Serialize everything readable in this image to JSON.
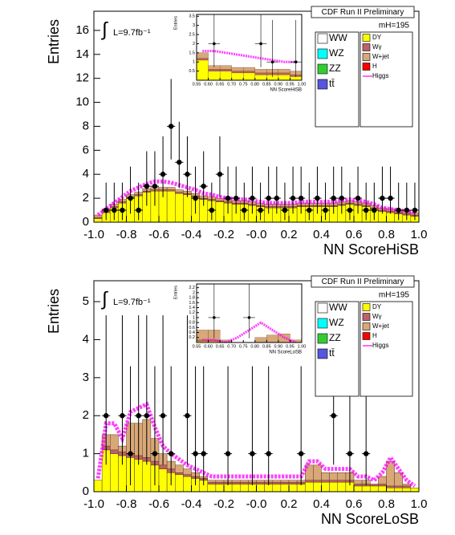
{
  "chart_data": [
    {
      "type": "histogram",
      "title": "CDF Run II Preliminary",
      "lumi_symbol": "∫",
      "lumi_label": "L=9.7fb⁻¹",
      "mass_label": "mH=195",
      "x_label": "NN ScoreHiSB",
      "y_label": "Entries",
      "bins": [
        -1,
        -0.95,
        -0.9,
        -0.85,
        -0.8,
        -0.75,
        -0.7,
        -0.65,
        -0.6,
        -0.55,
        -0.5,
        -0.45,
        -0.4,
        -0.35,
        -0.3,
        -0.25,
        -0.2,
        -0.15,
        -0.1,
        -0.05,
        0,
        0.05,
        0.1,
        0.15,
        0.2,
        0.25,
        0.3,
        0.35,
        0.4,
        0.45,
        0.5,
        0.55,
        0.6,
        0.65,
        0.7,
        0.75,
        0.8,
        0.85,
        0.9,
        0.95,
        1
      ],
      "xlim": [
        -1,
        1
      ],
      "ylim": [
        0,
        17.6
      ],
      "xticks": [
        {
          "value": -1,
          "label": "-1.0"
        },
        -0.8,
        -0.6,
        -0.4,
        -0.2,
        {
          "value": 0,
          "label": "-0.0"
        },
        0.2,
        0.4,
        0.6,
        0.8,
        {
          "value": 1,
          "label": "1.0"
        }
      ],
      "yticks": [
        0,
        2,
        4,
        6,
        8,
        10,
        12,
        14,
        16
      ],
      "series": [
        {
          "name": "DY",
          "color": "#ffff00",
          "values": [
            0.3,
            0.8,
            1.2,
            1.6,
            2.0,
            2.2,
            2.5,
            2.6,
            2.6,
            2.6,
            2.4,
            2.3,
            2.1,
            1.9,
            1.8,
            1.7,
            1.6,
            1.5,
            1.5,
            1.4,
            1.3,
            1.2,
            1.2,
            1.2,
            1.2,
            1.3,
            1.3,
            1.3,
            1.3,
            1.3,
            1.4,
            1.5,
            1.4,
            1.3,
            1.1,
            0.9,
            0.8,
            0.7,
            0.6,
            0.5
          ]
        },
        {
          "name": "Wγ",
          "color": "#c0606a",
          "values": [
            0.1,
            0.1,
            0.1,
            0.1,
            0.1,
            0.1,
            0.1,
            0.1,
            0.1,
            0.1,
            0.1,
            0.1,
            0.1,
            0.1,
            0.1,
            0.1,
            0.1,
            0.1,
            0.1,
            0.1,
            0.1,
            0.1,
            0.1,
            0.1,
            0.1,
            0.1,
            0.1,
            0.1,
            0.1,
            0.1,
            0.1,
            0.1,
            0.1,
            0.1,
            0.1,
            0.1,
            0.1,
            0.1,
            0.1,
            0.1
          ]
        },
        {
          "name": "W+jet",
          "color": "#d8a878",
          "values": [
            0.2,
            0.2,
            0.2,
            0.2,
            0.2,
            0.2,
            0.2,
            0.2,
            0.2,
            0.2,
            0.2,
            0.2,
            0.2,
            0.2,
            0.2,
            0.2,
            0.2,
            0.2,
            0.2,
            0.2,
            0.2,
            0.2,
            0.2,
            0.2,
            0.2,
            0.2,
            0.2,
            0.2,
            0.2,
            0.2,
            0.2,
            0.2,
            0.2,
            0.2,
            0.2,
            0.2,
            0.2,
            0.2,
            0.2,
            0.2
          ]
        }
      ],
      "other_processes": [
        {
          "name": "WW",
          "color": "#ffffff"
        },
        {
          "name": "WZ",
          "color": "#00ffff"
        },
        {
          "name": "ZZ",
          "color": "#33cc33"
        },
        {
          "name": "tt̄",
          "color": "#5555dd"
        },
        {
          "name": "H",
          "color": "#ff0000"
        }
      ],
      "signal": {
        "name": "Higgs",
        "color": "#ff00ff",
        "values": [
          0.6,
          1.1,
          1.6,
          2.1,
          2.6,
          2.9,
          3.2,
          3.4,
          3.4,
          3.3,
          3.1,
          2.9,
          2.7,
          2.4,
          2.3,
          2.1,
          2.0,
          1.9,
          1.9,
          1.8,
          1.7,
          1.6,
          1.6,
          1.6,
          1.6,
          1.7,
          1.7,
          1.7,
          1.7,
          1.7,
          1.8,
          1.9,
          1.8,
          1.7,
          1.5,
          1.2,
          1.1,
          1.0,
          0.9,
          0.8
        ]
      },
      "data_points": {
        "values": [
          null,
          1,
          1,
          1,
          2,
          1,
          3,
          3,
          4,
          8,
          5,
          4,
          2,
          3,
          1,
          4,
          2,
          2,
          1,
          2,
          1,
          2,
          2,
          1,
          2,
          2,
          1,
          2,
          1,
          2,
          2,
          1,
          2,
          1,
          1,
          2,
          2,
          1,
          1,
          1
        ],
        "err_low": [
          null,
          0.83,
          0.83,
          0.83,
          1.29,
          0.83,
          1.63,
          1.63,
          1.91,
          2.77,
          2.16,
          1.91,
          1.29,
          1.63,
          0.83,
          1.91,
          1.29,
          1.29,
          0.83,
          1.29,
          0.83,
          1.29,
          1.29,
          0.83,
          1.29,
          1.29,
          0.83,
          1.29,
          0.83,
          1.29,
          1.29,
          0.83,
          1.29,
          0.83,
          0.83,
          1.29,
          1.29,
          0.83,
          0.83,
          0.83
        ],
        "err_high": [
          null,
          2.3,
          2.3,
          2.3,
          2.64,
          2.3,
          2.92,
          2.92,
          3.16,
          3.95,
          3.38,
          3.16,
          2.64,
          2.92,
          2.3,
          3.16,
          2.64,
          2.64,
          2.3,
          2.64,
          2.3,
          2.64,
          2.64,
          2.3,
          2.64,
          2.64,
          2.3,
          2.64,
          2.3,
          2.64,
          2.64,
          2.3,
          2.64,
          2.3,
          2.3,
          2.64,
          2.64,
          2.3,
          2.3,
          2.3
        ]
      },
      "inset": {
        "x_label": "NN ScoreHiSB",
        "y_label": "Entries",
        "bins": [
          0.55,
          0.6,
          0.65,
          0.7,
          0.75,
          0.8,
          0.85,
          0.9,
          0.95,
          1.0
        ],
        "xlim": [
          0.55,
          1.0
        ],
        "ylim": [
          0,
          3.6
        ],
        "xticks": [
          0.55,
          {
            "value": 0.6,
            "label": "0.60"
          },
          0.65,
          {
            "value": 0.7,
            "label": "0.70"
          },
          0.75,
          {
            "value": 0.8,
            "label": "0.80"
          },
          0.85,
          {
            "value": 0.9,
            "label": "0.90"
          },
          0.95,
          {
            "value": 1.0,
            "label": "1.00"
          }
        ],
        "yticks": [
          0.5,
          1,
          1.5,
          2,
          2.5,
          3,
          3.5
        ],
        "series": [
          {
            "color": "#ffff00",
            "values": [
              1.1,
              0.5,
              0.5,
              0.4,
              0.4,
              0.3,
              0.3,
              0.3,
              0.2
            ]
          },
          {
            "color": "#c0606a",
            "values": [
              0.1,
              0.1,
              0.1,
              0.1,
              0.1,
              0.1,
              0.1,
              0.1,
              0.1
            ]
          },
          {
            "color": "#d8a878",
            "values": [
              0.3,
              0.2,
              0.2,
              0.2,
              0.2,
              0.2,
              0.2,
              0.2,
              0.2
            ]
          }
        ],
        "signal": {
          "color": "#ff00ff",
          "values": [
            1.6,
            1.6,
            1.5,
            1.4,
            1.3,
            1.2,
            1.1,
            1.0,
            1.0
          ]
        },
        "data_points": {
          "values": [
            null,
            2,
            null,
            null,
            null,
            2,
            1,
            null,
            1
          ],
          "err_low": [
            null,
            1.29,
            null,
            null,
            null,
            1.29,
            0.83,
            null,
            0.83
          ],
          "err_high": [
            null,
            2.64,
            null,
            null,
            null,
            2.64,
            2.3,
            null,
            2.3
          ]
        }
      }
    },
    {
      "type": "histogram",
      "title": "CDF Run II Preliminary",
      "lumi_symbol": "∫",
      "lumi_label": "L=9.7fb⁻¹",
      "mass_label": "mH=195",
      "x_label": "NN ScoreLoSB",
      "y_label": "Entries",
      "bins": [
        -1,
        -0.95,
        -0.9,
        -0.85,
        -0.8,
        -0.75,
        -0.7,
        -0.65,
        -0.6,
        -0.55,
        -0.5,
        -0.45,
        -0.4,
        -0.35,
        -0.3,
        -0.25,
        -0.2,
        -0.15,
        -0.1,
        -0.05,
        0,
        0.05,
        0.1,
        0.15,
        0.2,
        0.25,
        0.3,
        0.35,
        0.4,
        0.45,
        0.5,
        0.55,
        0.6,
        0.65,
        0.7,
        0.75,
        0.8,
        0.85,
        0.9,
        0.95,
        1
      ],
      "xlim": [
        -1,
        1
      ],
      "ylim": [
        0,
        5.55
      ],
      "xticks": [
        {
          "value": -1,
          "label": "-1.0"
        },
        -0.8,
        -0.6,
        -0.4,
        -0.2,
        {
          "value": 0,
          "label": "-0.0"
        },
        0.2,
        0.4,
        0.6,
        0.8,
        {
          "value": 1,
          "label": "1.0"
        }
      ],
      "yticks": [
        0,
        1,
        2,
        3,
        4,
        5
      ],
      "series": [
        {
          "name": "DY",
          "color": "#ffff00",
          "values": [
            0.3,
            1.1,
            1.0,
            0.95,
            0.9,
            0.85,
            0.8,
            0.7,
            0.6,
            0.5,
            0.45,
            0.4,
            0.35,
            0.3,
            0.2,
            0.2,
            0.2,
            0.2,
            0.2,
            0.2,
            0.2,
            0.2,
            0.2,
            0.2,
            0.2,
            0.2,
            0.25,
            0.25,
            0.25,
            0.25,
            0.25,
            0.25,
            0.15,
            0.15,
            0.15,
            0.15,
            0.1,
            0.1,
            0.1,
            0.1
          ]
        },
        {
          "name": "Wγ",
          "color": "#c0606a",
          "values": [
            0,
            0.1,
            0.1,
            0.1,
            0.1,
            0.1,
            0.1,
            0.1,
            0.1,
            0.1,
            0.05,
            0.05,
            0.05,
            0.05,
            0.05,
            0.05,
            0.05,
            0.05,
            0.05,
            0.05,
            0.05,
            0.05,
            0.05,
            0.05,
            0.05,
            0.05,
            0.05,
            0.05,
            0.05,
            0.05,
            0.05,
            0.05,
            0.05,
            0.05,
            0.05,
            0.05,
            0.05,
            0.05,
            0.05,
            0
          ]
        },
        {
          "name": "W+jet",
          "color": "#d8a878",
          "values": [
            0,
            0.3,
            0.4,
            0.15,
            0.8,
            0.85,
            1.0,
            0.6,
            0.3,
            0.2,
            0.2,
            0.15,
            0.1,
            0.05,
            0.05,
            0.05,
            0.05,
            0.05,
            0.05,
            0.05,
            0.05,
            0.05,
            0.05,
            0.05,
            0.05,
            0.05,
            0.4,
            0.4,
            0.2,
            0.2,
            0.2,
            0.2,
            0.1,
            0.1,
            0,
            0.2,
            0.65,
            0.35,
            0.05,
            0
          ]
        }
      ],
      "other_processes": [
        {
          "name": "WW",
          "color": "#ffffff"
        },
        {
          "name": "WZ",
          "color": "#00ffff"
        },
        {
          "name": "ZZ",
          "color": "#33cc33"
        },
        {
          "name": "tt̄",
          "color": "#5555dd"
        },
        {
          "name": "H",
          "color": "#ff0000"
        }
      ],
      "signal": {
        "name": "Higgs",
        "color": "#ff00ff",
        "values": [
          0.35,
          1.8,
          1.8,
          1.4,
          2.1,
          2.2,
          2.3,
          1.7,
          1.2,
          1.0,
          0.85,
          0.7,
          0.6,
          0.5,
          0.4,
          0.4,
          0.4,
          0.4,
          0.4,
          0.4,
          0.4,
          0.4,
          0.4,
          0.4,
          0.4,
          0.4,
          0.8,
          0.8,
          0.6,
          0.6,
          0.6,
          0.6,
          0.4,
          0.4,
          0.3,
          0.5,
          0.9,
          0.6,
          0.3,
          0.15
        ]
      },
      "data_points": {
        "values": [
          null,
          2,
          null,
          2,
          1,
          2,
          2,
          1,
          2,
          1,
          null,
          2,
          1,
          1,
          null,
          null,
          1,
          null,
          null,
          1,
          null,
          1,
          null,
          null,
          null,
          1,
          null,
          null,
          null,
          2,
          null,
          1,
          null,
          1,
          null,
          null,
          null,
          null,
          null,
          null
        ],
        "err_low": [
          null,
          1.29,
          null,
          1.29,
          0.83,
          1.29,
          1.29,
          0.83,
          1.29,
          0.83,
          null,
          1.29,
          0.83,
          0.83,
          null,
          null,
          0.83,
          null,
          null,
          0.83,
          null,
          0.83,
          null,
          null,
          null,
          0.83,
          null,
          null,
          null,
          1.29,
          null,
          0.83,
          null,
          0.83,
          null,
          null,
          null,
          null,
          null,
          null
        ],
        "err_high": [
          null,
          2.64,
          null,
          2.64,
          2.3,
          2.64,
          2.64,
          2.3,
          2.64,
          2.3,
          null,
          2.64,
          2.3,
          2.3,
          null,
          null,
          2.3,
          null,
          null,
          2.3,
          null,
          2.3,
          null,
          null,
          null,
          2.3,
          null,
          null,
          null,
          2.64,
          null,
          2.3,
          null,
          2.3,
          null,
          null,
          null,
          null,
          null,
          null
        ]
      },
      "inset": {
        "x_label": "NN ScoreLoSB",
        "y_label": "Entries",
        "bins": [
          0.55,
          0.6,
          0.65,
          0.7,
          0.75,
          0.8,
          0.85,
          0.9,
          0.95,
          1.0
        ],
        "xlim": [
          0.55,
          1.0
        ],
        "ylim": [
          0,
          2.35
        ],
        "xticks": [
          0.55,
          {
            "value": 0.6,
            "label": "0.60"
          },
          0.65,
          {
            "value": 0.7,
            "label": "0.70"
          },
          0.75,
          {
            "value": 0.8,
            "label": "0.80"
          },
          0.85,
          {
            "value": 0.9,
            "label": "0.90"
          },
          0.95,
          {
            "value": 1.0,
            "label": "1.00"
          }
        ],
        "yticks": [
          0.2,
          0.4,
          0.6,
          0.8,
          1,
          1.2,
          1.4,
          1.6,
          1.8,
          2,
          2.2
        ],
        "series": [
          {
            "color": "#ffff00",
            "values": [
              0.05,
              0.05,
              0,
              0,
              0,
              0,
              0,
              0,
              0
            ]
          },
          {
            "color": "#c0606a",
            "values": [
              0.05,
              0.05,
              0,
              0,
              0,
              0,
              0,
              0,
              0
            ]
          },
          {
            "color": "#d8a878",
            "values": [
              0.4,
              0.4,
              0.1,
              0,
              0,
              0.2,
              0.3,
              0.35,
              0.1
            ]
          }
        ],
        "signal": {
          "color": "#ff00ff",
          "values": [
            0.1,
            0.1,
            0,
            0.2,
            0.5,
            0.8,
            0.5,
            0.2,
            0
          ]
        },
        "data_points": {
          "values": [
            null,
            1,
            null,
            null,
            1,
            null,
            null,
            null,
            null
          ],
          "err_low": [
            null,
            0.83,
            null,
            null,
            0.83,
            null,
            null,
            null,
            null
          ],
          "err_high": [
            null,
            2.3,
            null,
            null,
            2.3,
            null,
            null,
            null,
            null
          ]
        }
      }
    }
  ]
}
